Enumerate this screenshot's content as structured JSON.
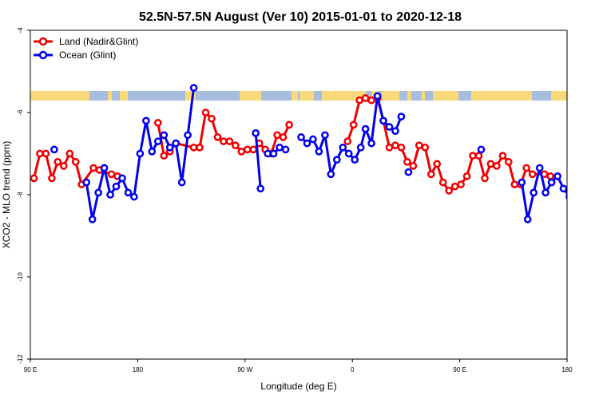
{
  "chart_data": {
    "type": "line",
    "title": "52.5N-57.5N August (Ver 10)   2015-01-01 to 2020-12-18",
    "xlabel": "Longitude (deg E)",
    "ylabel": "XCO2 - MLO trend (ppm)",
    "xlim": [
      90,
      540
    ],
    "ylim": [
      -12,
      -4
    ],
    "x_ticks": [
      {
        "value": 90,
        "label": "90 E"
      },
      {
        "value": 180,
        "label": "180"
      },
      {
        "value": 270,
        "label": "90 W"
      },
      {
        "value": 360,
        "label": "0"
      },
      {
        "value": 450,
        "label": "90 E"
      },
      {
        "value": 540,
        "label": "180"
      }
    ],
    "y_ticks": [
      {
        "value": -4,
        "label": "-4"
      },
      {
        "value": -6,
        "label": "-6"
      },
      {
        "value": -8,
        "label": "-8"
      },
      {
        "value": -10,
        "label": "-10"
      },
      {
        "value": -12,
        "label": "-12"
      }
    ],
    "land_ocean_strip": {
      "ocean_color": "#a7bde0",
      "land_color": "#f9d97a"
    },
    "legend": {
      "position": "top-left"
    },
    "series": [
      {
        "name": "Land (Nadir&Glint)",
        "color": "#ee0000",
        "segments": [
          [
            [
              93,
              -7.6
            ],
            [
              98,
              -7.0
            ],
            [
              103,
              -7.0
            ],
            [
              108,
              -7.6
            ],
            [
              113,
              -7.2
            ],
            [
              118,
              -7.3
            ],
            [
              123,
              -7.0
            ],
            [
              128,
              -7.2
            ],
            [
              133,
              -7.75
            ],
            [
              143,
              -7.35
            ],
            [
              148,
              -7.4
            ],
            [
              158,
              -7.5
            ],
            [
              163,
              -7.55
            ]
          ],
          [
            [
              197,
              -6.25
            ],
            [
              202,
              -7.05
            ],
            [
              207,
              -6.95
            ],
            [
              212,
              -6.75
            ],
            [
              227,
              -6.85
            ],
            [
              232,
              -6.85
            ],
            [
              237,
              -6.0
            ],
            [
              242,
              -6.15
            ],
            [
              247,
              -6.6
            ],
            [
              252,
              -6.7
            ],
            [
              257,
              -6.7
            ],
            [
              262,
              -6.8
            ],
            [
              267,
              -6.95
            ],
            [
              272,
              -6.9
            ],
            [
              277,
              -6.9
            ],
            [
              282,
              -6.75
            ],
            [
              287,
              -6.9
            ],
            [
              292,
              -7.0
            ],
            [
              297,
              -6.55
            ],
            [
              302,
              -6.6
            ],
            [
              307,
              -6.3
            ]
          ],
          [
            [
              356,
              -6.7
            ],
            [
              361,
              -6.3
            ],
            [
              366,
              -5.7
            ],
            [
              371,
              -5.65
            ],
            [
              376,
              -5.7
            ],
            [
              381,
              -5.65
            ],
            [
              386,
              -6.2
            ],
            [
              391,
              -6.85
            ],
            [
              396,
              -6.8
            ],
            [
              401,
              -6.85
            ],
            [
              406,
              -7.2
            ],
            [
              411,
              -7.3
            ],
            [
              416,
              -6.8
            ],
            [
              421,
              -6.85
            ],
            [
              426,
              -7.5
            ],
            [
              431,
              -7.25
            ],
            [
              436,
              -7.7
            ],
            [
              441,
              -7.9
            ],
            [
              446,
              -7.8
            ],
            [
              451,
              -7.75
            ],
            [
              456,
              -7.55
            ],
            [
              461,
              -7.05
            ],
            [
              466,
              -7.05
            ],
            [
              471,
              -7.6
            ],
            [
              476,
              -7.25
            ],
            [
              481,
              -7.3
            ],
            [
              486,
              -7.05
            ],
            [
              491,
              -7.2
            ],
            [
              496,
              -7.75
            ],
            [
              501,
              -7.75
            ],
            [
              506,
              -7.35
            ],
            [
              511,
              -7.5
            ],
            [
              521,
              -7.5
            ],
            [
              526,
              -7.55
            ]
          ]
        ]
      },
      {
        "name": "Ocean (Glint)",
        "color": "#0000ee",
        "segments": [
          [
            [
              110,
              -6.9
            ]
          ],
          [
            [
              137,
              -7.7
            ],
            [
              142,
              -8.6
            ],
            [
              147,
              -7.95
            ],
            [
              152,
              -7.35
            ],
            [
              157,
              -8.0
            ],
            [
              162,
              -7.8
            ],
            [
              167,
              -7.6
            ],
            [
              172,
              -7.95
            ],
            [
              177,
              -8.05
            ],
            [
              182,
              -7.0
            ],
            [
              187,
              -6.2
            ],
            [
              192,
              -6.95
            ],
            [
              197,
              -6.7
            ],
            [
              202,
              -6.55
            ],
            [
              207,
              -6.85
            ],
            [
              212,
              -6.75
            ],
            [
              217,
              -7.7
            ],
            [
              222,
              -6.55
            ],
            [
              227,
              -5.4
            ]
          ],
          [
            [
              279,
              -6.5
            ],
            [
              283,
              -7.85
            ]
          ],
          [
            [
              289,
              -7.0
            ],
            [
              294,
              -7.0
            ],
            [
              299,
              -6.85
            ],
            [
              304,
              -6.9
            ]
          ],
          [
            [
              317,
              -6.6
            ],
            [
              322,
              -6.75
            ],
            [
              327,
              -6.65
            ],
            [
              332,
              -6.95
            ],
            [
              337,
              -6.55
            ],
            [
              342,
              -7.5
            ],
            [
              347,
              -7.15
            ],
            [
              352,
              -6.85
            ],
            [
              357,
              -7.0
            ],
            [
              362,
              -7.15
            ],
            [
              367,
              -6.85
            ],
            [
              371,
              -6.4
            ],
            [
              376,
              -6.75
            ],
            [
              381,
              -5.6
            ],
            [
              386,
              -6.2
            ],
            [
              391,
              -6.35
            ],
            [
              396,
              -6.45
            ],
            [
              401,
              -6.1
            ]
          ],
          [
            [
              407,
              -7.45
            ]
          ],
          [
            [
              468,
              -6.9
            ]
          ],
          [
            [
              502,
              -7.7
            ],
            [
              507,
              -8.6
            ],
            [
              512,
              -7.95
            ],
            [
              517,
              -7.35
            ],
            [
              522,
              -7.95
            ],
            [
              527,
              -7.7
            ],
            [
              532,
              -7.55
            ],
            [
              537,
              -7.85
            ],
            [
              542,
              -8.05
            ]
          ]
        ]
      }
    ]
  }
}
